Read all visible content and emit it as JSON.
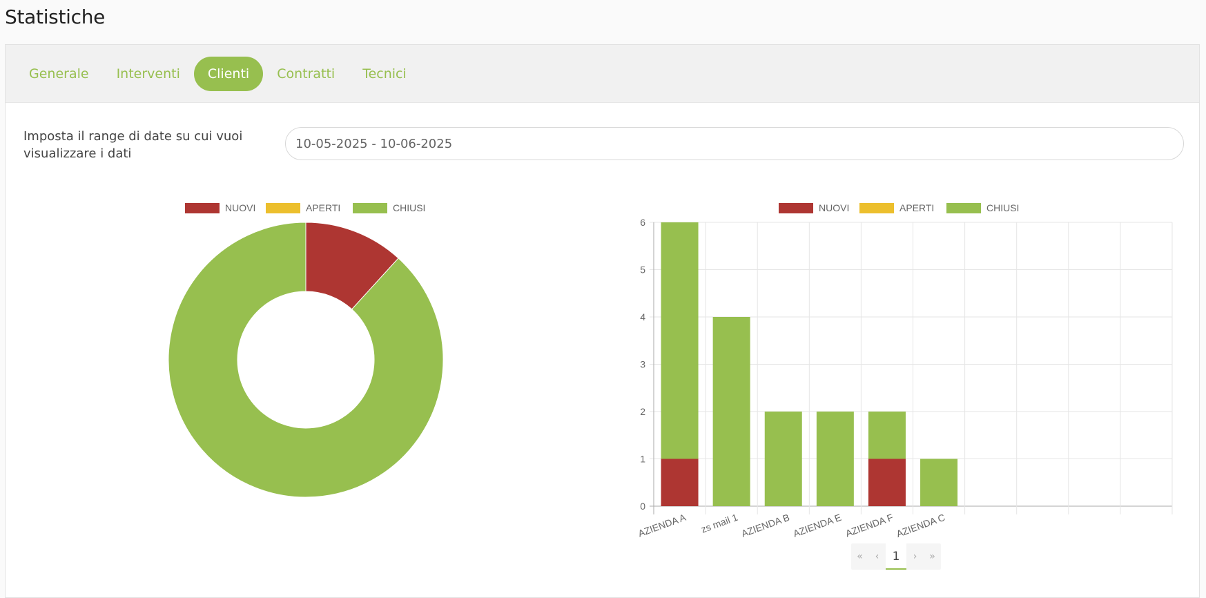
{
  "page": {
    "title": "Statistiche"
  },
  "tabs": [
    {
      "label": "Generale",
      "active": false
    },
    {
      "label": "Interventi",
      "active": false
    },
    {
      "label": "Clienti",
      "active": true
    },
    {
      "label": "Contratti",
      "active": false
    },
    {
      "label": "Tecnici",
      "active": false
    }
  ],
  "date_range": {
    "label": "Imposta il range di date su cui vuoi visualizzare i dati",
    "value": "10-05-2025 - 10-06-2025"
  },
  "colors": {
    "nuovi": "#ae3632",
    "aperti": "#ecbf2d",
    "chiusi": "#97bf4f",
    "accent": "#97bf4f"
  },
  "pagination": {
    "first": "«",
    "prev": "‹",
    "current": "1",
    "next": "›",
    "last": "»"
  },
  "chart_data": [
    {
      "type": "pie",
      "legend": [
        "NUOVI",
        "APERTI",
        "CHIUSI"
      ],
      "legend_position": "top",
      "categories": [
        "NUOVI",
        "APERTI",
        "CHIUSI"
      ],
      "values": [
        2,
        0,
        15
      ],
      "donut": true
    },
    {
      "type": "bar",
      "stacked": true,
      "legend_position": "top",
      "categories": [
        "AZIENDA A",
        "zs mail 1",
        "AZIENDA B",
        "AZIENDA E",
        "AZIENDA F",
        "AZIENDA C",
        "",
        "",
        "",
        ""
      ],
      "series": [
        {
          "name": "NUOVI",
          "values": [
            1,
            0,
            0,
            0,
            1,
            0,
            0,
            0,
            0,
            0
          ]
        },
        {
          "name": "APERTI",
          "values": [
            0,
            0,
            0,
            0,
            0,
            0,
            0,
            0,
            0,
            0
          ]
        },
        {
          "name": "CHIUSI",
          "values": [
            5,
            4,
            2,
            2,
            1,
            1,
            0,
            0,
            0,
            0
          ]
        }
      ],
      "ylim": [
        0,
        6
      ],
      "yticks": [
        "0",
        "1",
        "2",
        "3",
        "4",
        "5",
        "6"
      ],
      "grid": true
    }
  ]
}
